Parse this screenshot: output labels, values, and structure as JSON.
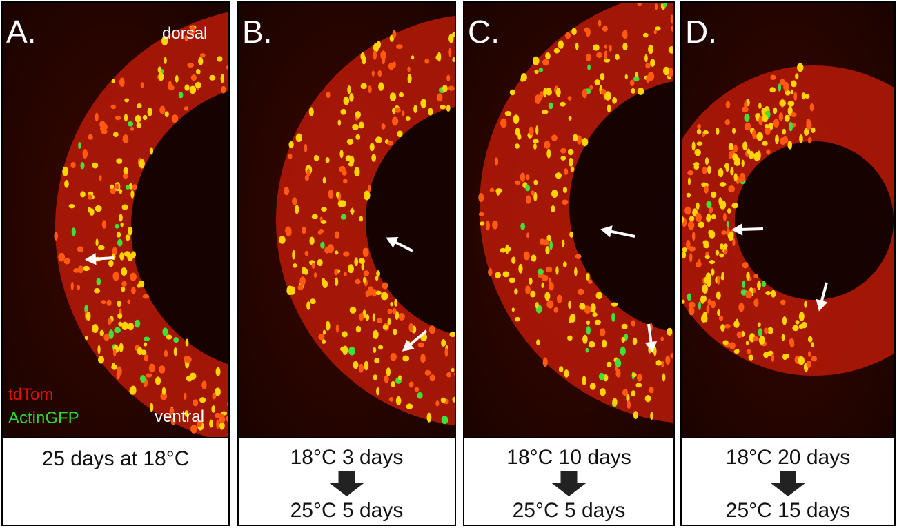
{
  "panels": [
    {
      "label": "A.",
      "caption": [
        "25 days at 18°C"
      ]
    },
    {
      "label": "B.",
      "caption": [
        "18°C 3 days",
        "25°C 5 days"
      ]
    },
    {
      "label": "C.",
      "caption": [
        "18°C 10 days",
        "25°C 5 days"
      ]
    },
    {
      "label": "D.",
      "caption": [
        "18°C 20 days",
        "25°C 15 days"
      ]
    }
  ],
  "orientation": [
    "dorsal",
    "ventral"
  ],
  "legend": [
    "tdTom",
    "ActinGFP"
  ]
}
